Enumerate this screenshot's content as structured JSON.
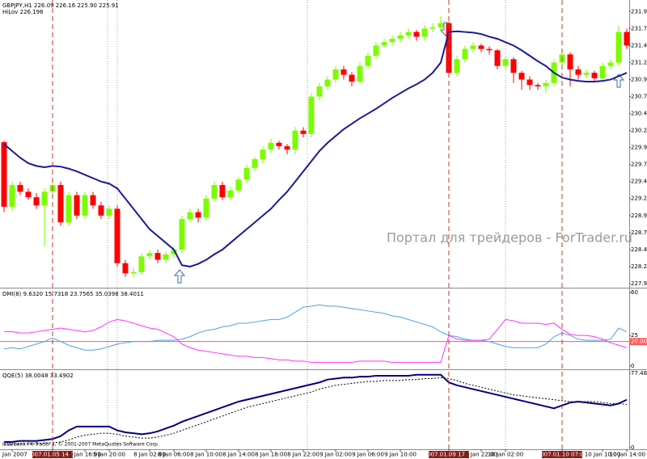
{
  "chart_data": [
    {
      "type": "candlestick",
      "title": "GBPJPY,H1 226.09 226.16 225.90 225.91",
      "up_color": "#7cfc00",
      "down_color": "#ff0000",
      "open": [
        230.03,
        229.08,
        229.4,
        229.3,
        229.22,
        229.1,
        229.3,
        229.4,
        228.85,
        229.25,
        228.95,
        229.25,
        229.1,
        228.95,
        229.05,
        228.25,
        228.1,
        228.12,
        228.35,
        228.4,
        228.3,
        228.38,
        228.45,
        228.9,
        229.0,
        228.92,
        229.2,
        229.4,
        229.22,
        229.32,
        229.48,
        229.65,
        229.78,
        229.92,
        230.02,
        229.97,
        229.92,
        230.2,
        230.15,
        230.7,
        230.85,
        230.95,
        231.1,
        231.02,
        230.92,
        231.15,
        231.3,
        231.45,
        231.5,
        231.55,
        231.6,
        231.65,
        231.58,
        231.7,
        231.72,
        231.78,
        231.05,
        231.25,
        231.4,
        231.45,
        231.4,
        231.38,
        231.15,
        231.25,
        231.05,
        230.95,
        230.87,
        230.85,
        230.9,
        231.2,
        231.32,
        231.1,
        231.02,
        231.05,
        230.97,
        231.15,
        231.2,
        231.65
      ],
      "high": [
        230.05,
        229.45,
        229.45,
        229.35,
        229.28,
        229.35,
        229.45,
        229.45,
        229.3,
        229.3,
        229.3,
        229.3,
        229.15,
        229.1,
        229.1,
        228.3,
        228.18,
        228.4,
        228.45,
        228.45,
        228.42,
        228.5,
        228.95,
        229.05,
        229.05,
        229.25,
        229.45,
        229.45,
        229.38,
        229.52,
        229.7,
        229.82,
        229.97,
        230.08,
        230.05,
        230.0,
        230.25,
        230.25,
        230.75,
        230.9,
        231.0,
        231.15,
        231.15,
        231.06,
        231.2,
        231.35,
        231.5,
        231.55,
        231.6,
        231.65,
        231.7,
        231.68,
        231.75,
        231.78,
        231.88,
        231.8,
        231.3,
        231.45,
        231.5,
        231.48,
        231.44,
        231.4,
        231.3,
        231.28,
        231.08,
        231.0,
        230.9,
        230.95,
        231.25,
        231.38,
        231.35,
        231.15,
        231.1,
        231.08,
        231.2,
        231.25,
        231.75,
        231.7
      ],
      "low": [
        229.0,
        229.02,
        229.25,
        229.18,
        229.05,
        228.5,
        229.25,
        228.8,
        228.8,
        228.9,
        228.9,
        229.05,
        228.9,
        228.9,
        228.2,
        228.05,
        228.05,
        228.08,
        228.3,
        228.25,
        228.25,
        228.32,
        228.4,
        228.85,
        228.85,
        228.88,
        229.15,
        229.18,
        229.18,
        229.28,
        229.42,
        229.6,
        229.72,
        229.88,
        229.92,
        229.85,
        229.85,
        230.1,
        230.1,
        230.65,
        230.8,
        230.9,
        230.95,
        230.85,
        230.88,
        231.1,
        231.25,
        231.42,
        231.45,
        231.5,
        231.55,
        231.52,
        231.52,
        231.65,
        231.65,
        231.0,
        231.0,
        231.2,
        231.35,
        231.35,
        231.32,
        231.1,
        231.1,
        230.9,
        230.8,
        230.8,
        230.8,
        230.75,
        230.85,
        231.15,
        230.85,
        230.95,
        230.97,
        230.92,
        230.92,
        231.1,
        231.15,
        231.4
      ],
      "close": [
        229.08,
        229.4,
        229.3,
        229.22,
        229.1,
        229.3,
        229.4,
        228.85,
        229.25,
        228.95,
        229.25,
        229.1,
        228.95,
        229.05,
        228.25,
        228.1,
        228.12,
        228.35,
        228.4,
        228.3,
        228.38,
        228.45,
        228.9,
        229.0,
        228.92,
        229.2,
        229.4,
        229.22,
        229.32,
        229.48,
        229.65,
        229.78,
        229.92,
        230.02,
        229.97,
        229.92,
        230.2,
        230.15,
        230.7,
        230.85,
        230.95,
        231.1,
        231.02,
        230.92,
        231.15,
        231.3,
        231.45,
        231.5,
        231.55,
        231.6,
        231.65,
        231.58,
        231.7,
        231.72,
        231.78,
        231.05,
        231.25,
        231.4,
        231.45,
        231.4,
        231.38,
        231.15,
        231.25,
        231.05,
        230.95,
        230.87,
        230.85,
        230.9,
        231.2,
        231.32,
        231.1,
        231.02,
        231.05,
        230.97,
        231.15,
        231.2,
        231.65,
        231.45
      ],
      "overlays": [
        {
          "name": "HiLov 226.196",
          "color": "#1a1a9a",
          "values": [
            230.0,
            229.9,
            229.8,
            229.72,
            229.68,
            229.66,
            229.68,
            229.67,
            229.64,
            229.6,
            229.55,
            229.5,
            229.45,
            229.42,
            229.35,
            229.2,
            229.05,
            228.9,
            228.75,
            228.65,
            228.55,
            228.45,
            228.22,
            228.2,
            228.24,
            228.3,
            228.38,
            228.45,
            228.55,
            228.65,
            228.75,
            228.85,
            228.95,
            229.05,
            229.18,
            229.3,
            229.45,
            229.6,
            229.75,
            229.9,
            230.02,
            230.12,
            230.22,
            230.3,
            230.38,
            230.45,
            230.52,
            230.6,
            230.68,
            230.75,
            230.82,
            230.88,
            230.95,
            231.05,
            231.2,
            231.65,
            231.66,
            231.65,
            231.64,
            231.62,
            231.58,
            231.55,
            231.5,
            231.45,
            231.38,
            231.3,
            231.22,
            231.15,
            231.05,
            230.98,
            230.95,
            230.93,
            230.92,
            230.92,
            230.93,
            230.95,
            231.0,
            231.05
          ]
        }
      ],
      "ylim": [
        227.89,
        232.12
      ],
      "yticks": [
        231.95,
        {
          "value": 231.7,
          "label": "231.70"
        },
        231.45,
        {
          "value": 231.2,
          "label": "231.20"
        },
        230.95,
        {
          "value": 230.7,
          "label": "230.70"
        },
        230.45,
        {
          "value": 230.2,
          "label": "230.20"
        },
        229.95,
        {
          "value": 229.7,
          "label": "229.70"
        },
        229.45,
        {
          "value": 229.2,
          "label": "229.20"
        },
        228.95,
        {
          "value": 228.7,
          "label": "228.70"
        },
        228.45,
        {
          "value": 228.2,
          "label": "228.20"
        },
        227.95
      ],
      "annotation": "Портал для трейдеров - ForTrader.ru"
    },
    {
      "type": "line",
      "title": "DMI(8) 9.6320 15.7318 23.7565 35.0398 38.4011",
      "series": [
        {
          "color": "#4aa3e8",
          "values": [
            14,
            15,
            14,
            16,
            18,
            20,
            23,
            20,
            17,
            15,
            13,
            13,
            14,
            16,
            18,
            19,
            20,
            20,
            20,
            21,
            21,
            21,
            22,
            24,
            27,
            29,
            30,
            32,
            33,
            35,
            35,
            36,
            37,
            38,
            38,
            40,
            44,
            48,
            49,
            50,
            49,
            49,
            48,
            47,
            46,
            45,
            44,
            43,
            41,
            40,
            38,
            36,
            34,
            32,
            28,
            25,
            24,
            22,
            21,
            21,
            20,
            18,
            16,
            15,
            15,
            15,
            15,
            18,
            24,
            27,
            25,
            22,
            21,
            21,
            21,
            22,
            31,
            28
          ]
        },
        {
          "color": "#ff33ff",
          "values": [
            28,
            28,
            27,
            27,
            28,
            29,
            30,
            31,
            30,
            29,
            28,
            29,
            32,
            36,
            38,
            37,
            35,
            33,
            31,
            30,
            27,
            24,
            18,
            15,
            13,
            12,
            11,
            10,
            9,
            8,
            8,
            7,
            7,
            6,
            5,
            5,
            4,
            4,
            3,
            3,
            3,
            3,
            3,
            3,
            4,
            4,
            4,
            4,
            3,
            3,
            3,
            3,
            3,
            3,
            3,
            25,
            22,
            21,
            21,
            21,
            22,
            30,
            38,
            37,
            35,
            35,
            35,
            34,
            35,
            30,
            26,
            25,
            25,
            24,
            22,
            19,
            17,
            15
          ]
        }
      ],
      "ylim": [
        -2,
        62.7
      ],
      "yticks": [
        60,
        25,
        0
      ],
      "levels": [
        {
          "value": 20,
          "label": "20.00",
          "color": "#ff5a5a"
        }
      ]
    },
    {
      "type": "line",
      "title": "QQE(5) 38.0048 33.4902",
      "series": [
        {
          "color": "#000080",
          "line_style": "solid",
          "values": [
            6,
            6,
            7,
            7,
            7,
            8,
            9,
            12,
            18,
            22,
            22,
            22,
            22,
            22,
            18,
            16,
            15,
            14,
            15,
            17,
            20,
            23,
            27,
            30,
            33,
            36,
            39,
            42,
            45,
            48,
            50,
            52,
            54,
            56,
            58,
            60,
            62,
            64,
            66,
            68,
            71,
            72,
            73,
            73,
            74,
            74,
            75,
            75,
            75,
            75,
            75,
            76,
            76,
            76,
            76,
            68,
            65,
            63,
            61,
            59,
            57,
            55,
            53,
            51,
            49,
            47,
            45,
            43,
            41,
            44,
            47,
            48,
            47,
            46,
            45,
            44,
            46,
            50
          ]
        },
        {
          "color": "#000000",
          "line_style": "dotted",
          "values": [
            3,
            3,
            4,
            4,
            4,
            5,
            5,
            6,
            8,
            11,
            13,
            14,
            15,
            15,
            14,
            12,
            11,
            10,
            10,
            11,
            13,
            15,
            18,
            21,
            24,
            27,
            30,
            33,
            36,
            39,
            42,
            44,
            46,
            48,
            50,
            52,
            54,
            56,
            58,
            61,
            63,
            65,
            66,
            67,
            68,
            69,
            69,
            70,
            70,
            70,
            71,
            71,
            72,
            72,
            73,
            72,
            70,
            67,
            65,
            63,
            61,
            59,
            57,
            55,
            54,
            53,
            52,
            51,
            50,
            49,
            48,
            48,
            48,
            48,
            47,
            46,
            46,
            45
          ]
        }
      ],
      "ylim": [
        -1.7,
        80
      ],
      "yticks": [
        77.4822,
        0
      ],
      "categories": [
        null,
        "5 Jan 2007",
        null,
        null,
        null,
        null,
        "2007.01.05 14:00",
        null,
        null,
        null,
        "5 Jan 16:00",
        null,
        null,
        "5 Jan 20:00",
        null,
        null,
        null,
        null,
        "8 Jan 02:00",
        null,
        null,
        "8 Jan 06:00",
        null,
        null,
        null,
        "8 Jan 10:00",
        null,
        null,
        null,
        "8 Jan 14:00",
        null,
        null,
        null,
        "8 Jan 18:00",
        null,
        null,
        null,
        "8 Jan 22:00",
        null,
        null,
        null,
        "9 Jan 02:00",
        null,
        null,
        null,
        "9 Jan 06:00",
        null,
        null,
        null,
        "9 Jan 10:00",
        null,
        null,
        null,
        null,
        null,
        "2007.01.09 17:00",
        null,
        null,
        null,
        "9 Jan 22:00",
        null,
        null,
        "10 Jan 02:00",
        null,
        null,
        null,
        null,
        null,
        null,
        "2007.01.10 07:00",
        null,
        null,
        null,
        null,
        "10 Jan 10:00",
        null,
        null,
        "10 Jan 14:00"
      ],
      "footnote": "Interbank FX Trader 4, © 2001-2007 MetaQuotes Software Corp."
    }
  ]
}
